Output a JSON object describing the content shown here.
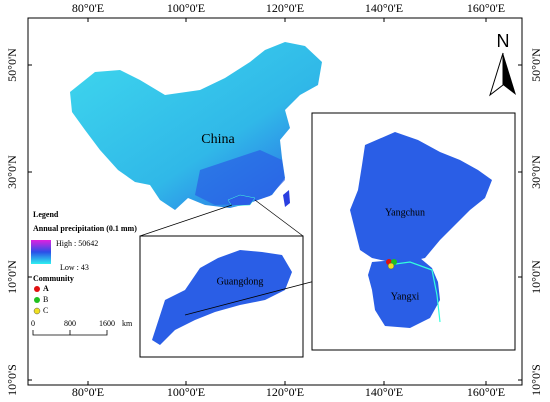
{
  "map": {
    "lon_labels": [
      "80°0'E",
      "100°0'E",
      "120°0'E",
      "140°0'E",
      "160°0'E"
    ],
    "lat_labels": [
      "50°0'N",
      "30°0'N",
      "10°0'N",
      "10°0'S"
    ],
    "north": "N",
    "country": "China",
    "province": "Guangdong",
    "counties": [
      "Yangchun",
      "Yangxi"
    ],
    "legend": {
      "title": "Legend",
      "variable": "Annual precipitation (0.1 mm)",
      "high": "High : 50642",
      "low": "Low : 43",
      "community_title": "Community",
      "communities": [
        "A",
        "B",
        "C"
      ],
      "scale": [
        "0",
        "800",
        "1600"
      ],
      "scale_unit": "km"
    }
  }
}
